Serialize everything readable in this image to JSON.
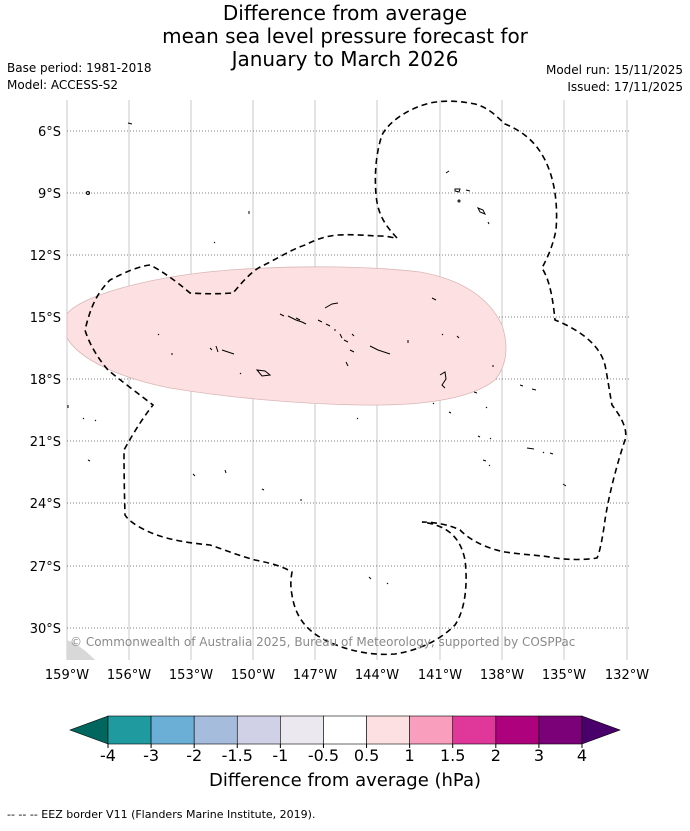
{
  "title": {
    "line1": "Difference from average",
    "line2": "mean sea level pressure forecast for",
    "line3": "January to March 2026"
  },
  "meta": {
    "base_period": "Base period: 1981-2018",
    "model": "Model: ACCESS-S2",
    "model_run": "Model run: 15/11/2025",
    "issued": "Issued: 17/11/2025"
  },
  "axes": {
    "lon_labels": [
      "159°W",
      "156°W",
      "153°W",
      "150°W",
      "147°W",
      "144°W",
      "141°W",
      "138°W",
      "135°W",
      "132°W"
    ],
    "lat_labels": [
      "6°S",
      "9°S",
      "12°S",
      "15°S",
      "18°S",
      "21°S",
      "24°S",
      "27°S",
      "30°S"
    ]
  },
  "copyright": "© Commonwealth of Australia 2025, Bureau of Meteorology, supported by COSPPac",
  "colorbar": {
    "title": "Difference from average (hPa)",
    "tick_labels": [
      "-4",
      "-3",
      "-2",
      "-1.5",
      "-1",
      "-0.5",
      "0.5",
      "1",
      "1.5",
      "2",
      "3",
      "4"
    ],
    "colors": [
      "#00665e",
      "#1f9a9e",
      "#6baed6",
      "#a6bcdc",
      "#d0d1e6",
      "#ebe9ef",
      "#ffffff",
      "#fde0e1",
      "#f99fbd",
      "#e0389a",
      "#ae017e",
      "#7a0177",
      "#49006a"
    ]
  },
  "anomaly_region": {
    "color": "#fde0e1",
    "category": "0.5 to 1"
  },
  "footer": "-- -- -- EEZ border V11 (Flanders Marine Institute, 2019)."
}
